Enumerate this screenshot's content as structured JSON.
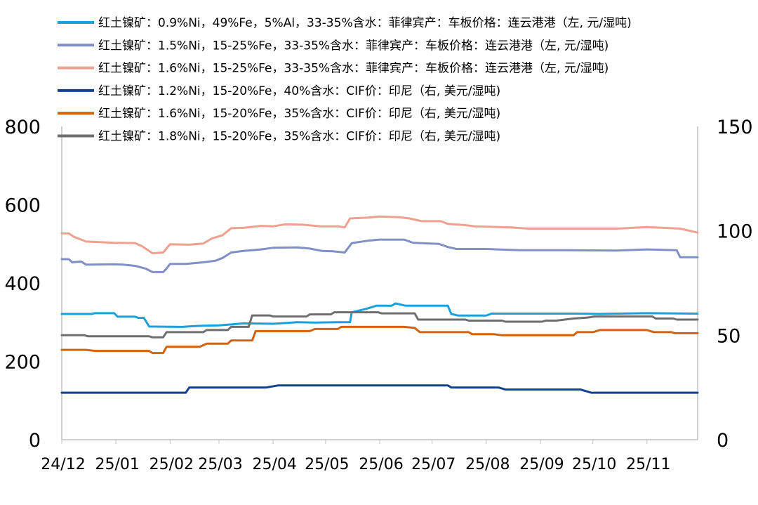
{
  "chart_data": {
    "type": "line",
    "title": "",
    "xlabel": "",
    "ylabel_left": "",
    "ylabel_right": "",
    "x_start": "2024-12-01",
    "x_end": "2025-11-30",
    "x_ticks": [
      {
        "label": "24/12",
        "date": "2024-12-01"
      },
      {
        "label": "25/01",
        "date": "2025-01-01"
      },
      {
        "label": "25/02",
        "date": "2025-02-01"
      },
      {
        "label": "25/03",
        "date": "2025-03-01"
      },
      {
        "label": "25/04",
        "date": "2025-04-01"
      },
      {
        "label": "25/05",
        "date": "2025-05-01"
      },
      {
        "label": "25/06",
        "date": "2025-06-01"
      },
      {
        "label": "25/07",
        "date": "2025-07-01"
      },
      {
        "label": "25/08",
        "date": "2025-08-01"
      },
      {
        "label": "25/09",
        "date": "2025-09-01"
      },
      {
        "label": "25/10",
        "date": "2025-10-01"
      },
      {
        "label": "25/11",
        "date": "2025-11-01"
      }
    ],
    "ylim_left": [
      0,
      800
    ],
    "yticks_left": [
      0,
      200,
      400,
      600,
      800
    ],
    "ylim_right": [
      0,
      150
    ],
    "yticks_right": [
      0,
      50,
      100,
      150
    ],
    "grid": false,
    "legend_position": "top",
    "series": [
      {
        "name": "红土镍矿：0.9%Ni，49%Fe，5%Al，33-35%含水：菲律宾产：车板价格：连云港港（左, 元/湿吨)",
        "axis": "left",
        "color": "#1ca0d8",
        "points": [
          [
            "2024-12-01",
            321
          ],
          [
            "2024-12-18",
            321
          ],
          [
            "2024-12-20",
            323
          ],
          [
            "2024-12-31",
            323
          ],
          [
            "2025-01-02",
            314
          ],
          [
            "2025-01-12",
            314
          ],
          [
            "2025-01-14",
            311
          ],
          [
            "2025-01-17",
            311
          ],
          [
            "2025-01-20",
            289
          ],
          [
            "2025-02-08",
            288
          ],
          [
            "2025-02-15",
            290
          ],
          [
            "2025-02-20",
            291
          ],
          [
            "2025-03-01",
            292
          ],
          [
            "2025-03-10",
            295
          ],
          [
            "2025-03-15",
            297
          ],
          [
            "2025-04-01",
            296
          ],
          [
            "2025-04-15",
            300
          ],
          [
            "2025-04-25",
            299
          ],
          [
            "2025-05-08",
            300
          ],
          [
            "2025-05-15",
            300
          ],
          [
            "2025-05-16",
            325
          ],
          [
            "2025-05-25",
            335
          ],
          [
            "2025-05-30",
            342
          ],
          [
            "2025-06-08",
            342
          ],
          [
            "2025-06-10",
            348
          ],
          [
            "2025-06-16",
            342
          ],
          [
            "2025-07-05",
            342
          ],
          [
            "2025-07-10",
            342
          ],
          [
            "2025-07-12",
            321
          ],
          [
            "2025-07-16",
            317
          ],
          [
            "2025-08-01",
            317
          ],
          [
            "2025-08-04",
            322
          ],
          [
            "2025-09-20",
            322
          ],
          [
            "2025-10-05",
            321
          ],
          [
            "2025-11-01",
            323
          ],
          [
            "2025-11-30",
            322
          ]
        ]
      },
      {
        "name": "红土镍矿：1.5%Ni，15-25%Fe，33-35%含水：菲律宾产：车板价格：连云港港（左, 元/湿吨)",
        "axis": "left",
        "color": "#8190c4",
        "points": [
          [
            "2024-12-01",
            461
          ],
          [
            "2024-12-05",
            461
          ],
          [
            "2024-12-07",
            453
          ],
          [
            "2024-12-12",
            455
          ],
          [
            "2024-12-15",
            447
          ],
          [
            "2024-12-31",
            448
          ],
          [
            "2025-01-05",
            447
          ],
          [
            "2025-01-12",
            444
          ],
          [
            "2025-01-18",
            437
          ],
          [
            "2025-01-22",
            428
          ],
          [
            "2025-01-28",
            428
          ],
          [
            "2025-01-30",
            437
          ],
          [
            "2025-02-01",
            449
          ],
          [
            "2025-02-10",
            449
          ],
          [
            "2025-02-20",
            453
          ],
          [
            "2025-02-27",
            457
          ],
          [
            "2025-03-03",
            464
          ],
          [
            "2025-03-08",
            478
          ],
          [
            "2025-03-15",
            482
          ],
          [
            "2025-03-25",
            486
          ],
          [
            "2025-04-01",
            490
          ],
          [
            "2025-04-15",
            491
          ],
          [
            "2025-04-22",
            488
          ],
          [
            "2025-04-29",
            482
          ],
          [
            "2025-05-05",
            481
          ],
          [
            "2025-05-12",
            478
          ],
          [
            "2025-05-16",
            502
          ],
          [
            "2025-05-25",
            508
          ],
          [
            "2025-06-01",
            511
          ],
          [
            "2025-06-15",
            511
          ],
          [
            "2025-06-20",
            503
          ],
          [
            "2025-07-05",
            500
          ],
          [
            "2025-07-10",
            492
          ],
          [
            "2025-07-15",
            487
          ],
          [
            "2025-08-01",
            487
          ],
          [
            "2025-08-20",
            484
          ],
          [
            "2025-09-15",
            484
          ],
          [
            "2025-10-15",
            483
          ],
          [
            "2025-11-01",
            486
          ],
          [
            "2025-11-18",
            484
          ],
          [
            "2025-11-20",
            466
          ],
          [
            "2025-11-30",
            466
          ]
        ]
      },
      {
        "name": "红土镍矿：1.6%Ni，15-25%Fe，33-35%含水：菲律宾产：车板价格：连云港港（左, 元/湿吨)",
        "axis": "left",
        "color": "#f0a08f",
        "points": [
          [
            "2024-12-01",
            527
          ],
          [
            "2024-12-05",
            527
          ],
          [
            "2024-12-08",
            518
          ],
          [
            "2024-12-12",
            511
          ],
          [
            "2024-12-15",
            506
          ],
          [
            "2024-12-31",
            503
          ],
          [
            "2025-01-12",
            502
          ],
          [
            "2025-01-16",
            494
          ],
          [
            "2025-01-22",
            476
          ],
          [
            "2025-01-28",
            478
          ],
          [
            "2025-02-01",
            499
          ],
          [
            "2025-02-12",
            498
          ],
          [
            "2025-02-20",
            501
          ],
          [
            "2025-02-25",
            514
          ],
          [
            "2025-03-03",
            522
          ],
          [
            "2025-03-08",
            540
          ],
          [
            "2025-03-15",
            541
          ],
          [
            "2025-03-25",
            546
          ],
          [
            "2025-04-01",
            545
          ],
          [
            "2025-04-08",
            550
          ],
          [
            "2025-04-18",
            549
          ],
          [
            "2025-04-28",
            545
          ],
          [
            "2025-05-08",
            545
          ],
          [
            "2025-05-12",
            542
          ],
          [
            "2025-05-15",
            565
          ],
          [
            "2025-05-25",
            567
          ],
          [
            "2025-06-01",
            570
          ],
          [
            "2025-06-12",
            568
          ],
          [
            "2025-06-18",
            565
          ],
          [
            "2025-06-25",
            558
          ],
          [
            "2025-07-06",
            558
          ],
          [
            "2025-07-10",
            551
          ],
          [
            "2025-07-20",
            548
          ],
          [
            "2025-07-25",
            545
          ],
          [
            "2025-08-15",
            542
          ],
          [
            "2025-08-25",
            539
          ],
          [
            "2025-09-15",
            539
          ],
          [
            "2025-10-15",
            539
          ],
          [
            "2025-11-01",
            543
          ],
          [
            "2025-11-20",
            539
          ],
          [
            "2025-11-26",
            533
          ],
          [
            "2025-11-30",
            529
          ]
        ]
      },
      {
        "name": "红土镍矿：1.2%Ni，15-20%Fe，40%含水：CIF价：印尼（右, 美元/湿吨)",
        "axis": "right",
        "color": "#10428f",
        "points": [
          [
            "2024-12-01",
            22.5
          ],
          [
            "2025-02-10",
            22.5
          ],
          [
            "2025-02-12",
            25
          ],
          [
            "2025-03-28",
            25
          ],
          [
            "2025-04-04",
            26
          ],
          [
            "2025-07-10",
            26
          ],
          [
            "2025-07-12",
            25
          ],
          [
            "2025-08-08",
            25
          ],
          [
            "2025-08-12",
            24
          ],
          [
            "2025-09-24",
            24
          ],
          [
            "2025-09-30",
            22.5
          ],
          [
            "2025-11-30",
            22.5
          ]
        ]
      },
      {
        "name": "红土镍矿：1.6%Ni，15-20%Fe，35%含水：CIF价：印尼（右, 美元/湿吨)",
        "axis": "right",
        "color": "#d2620c",
        "points": [
          [
            "2024-12-01",
            43
          ],
          [
            "2024-12-15",
            43
          ],
          [
            "2024-12-20",
            42.5
          ],
          [
            "2025-01-20",
            42.5
          ],
          [
            "2025-01-22",
            41.5
          ],
          [
            "2025-01-28",
            41.5
          ],
          [
            "2025-01-30",
            44.5
          ],
          [
            "2025-02-18",
            44.5
          ],
          [
            "2025-02-22",
            46
          ],
          [
            "2025-03-06",
            46
          ],
          [
            "2025-03-08",
            47.5
          ],
          [
            "2025-03-20",
            47.5
          ],
          [
            "2025-03-22",
            52
          ],
          [
            "2025-04-22",
            52
          ],
          [
            "2025-04-25",
            53
          ],
          [
            "2025-05-08",
            53
          ],
          [
            "2025-05-10",
            54
          ],
          [
            "2025-06-15",
            54
          ],
          [
            "2025-06-21",
            53.5
          ],
          [
            "2025-06-24",
            51.5
          ],
          [
            "2025-07-22",
            51.5
          ],
          [
            "2025-07-24",
            50.5
          ],
          [
            "2025-08-05",
            50.5
          ],
          [
            "2025-08-10",
            50
          ],
          [
            "2025-09-20",
            50
          ],
          [
            "2025-09-22",
            51.5
          ],
          [
            "2025-10-01",
            51.5
          ],
          [
            "2025-10-05",
            52.5
          ],
          [
            "2025-11-01",
            52.5
          ],
          [
            "2025-11-05",
            51.5
          ],
          [
            "2025-11-15",
            51.5
          ],
          [
            "2025-11-17",
            51
          ],
          [
            "2025-11-30",
            51
          ]
        ]
      },
      {
        "name": "红土镍矿：1.8%Ni，15-20%Fe，35%含水：CIF价：印尼（右, 美元/湿吨)",
        "axis": "right",
        "color": "#6e6e6e",
        "points": [
          [
            "2024-12-01",
            50
          ],
          [
            "2024-12-14",
            50
          ],
          [
            "2024-12-16",
            49.5
          ],
          [
            "2025-01-20",
            49.5
          ],
          [
            "2025-01-22",
            49
          ],
          [
            "2025-01-28",
            49
          ],
          [
            "2025-01-30",
            51.5
          ],
          [
            "2025-02-20",
            51.5
          ],
          [
            "2025-02-22",
            52.5
          ],
          [
            "2025-03-06",
            52.5
          ],
          [
            "2025-03-08",
            54
          ],
          [
            "2025-03-18",
            54
          ],
          [
            "2025-03-20",
            59.5
          ],
          [
            "2025-03-30",
            59.5
          ],
          [
            "2025-04-01",
            59
          ],
          [
            "2025-04-20",
            59
          ],
          [
            "2025-04-22",
            60
          ],
          [
            "2025-05-04",
            60
          ],
          [
            "2025-05-06",
            61
          ],
          [
            "2025-05-31",
            61
          ],
          [
            "2025-06-02",
            60.5
          ],
          [
            "2025-06-21",
            60.5
          ],
          [
            "2025-06-23",
            57.5
          ],
          [
            "2025-07-20",
            57.5
          ],
          [
            "2025-07-22",
            57
          ],
          [
            "2025-08-10",
            57
          ],
          [
            "2025-08-12",
            56.5
          ],
          [
            "2025-09-02",
            56.5
          ],
          [
            "2025-09-04",
            57
          ],
          [
            "2025-09-10",
            57
          ],
          [
            "2025-09-20",
            58
          ],
          [
            "2025-09-28",
            58.5
          ],
          [
            "2025-10-02",
            59
          ],
          [
            "2025-11-04",
            59
          ],
          [
            "2025-11-06",
            58
          ],
          [
            "2025-11-16",
            58
          ],
          [
            "2025-11-18",
            57.5
          ],
          [
            "2025-11-30",
            57.5
          ]
        ]
      }
    ]
  }
}
